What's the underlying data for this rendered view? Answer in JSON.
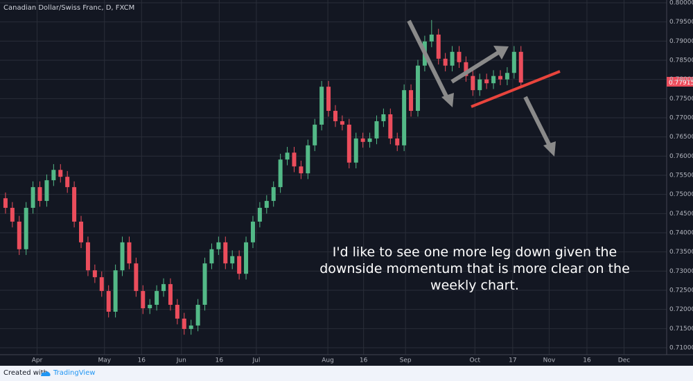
{
  "chart_data": {
    "type": "candlestick",
    "title": "Canadian Dollar/Swiss Franc, D, FXCM",
    "annotation": "I'd like to see one more leg down given the downside momentum that is more clear on the weekly chart.",
    "footer": {
      "created_with": "Created with",
      "brand": "TradingView"
    },
    "up_color": "#53b987",
    "down_color": "#eb4d5c",
    "last_price": {
      "value": 0.77915,
      "label": "0.77915"
    },
    "xlim": [
      -0.8,
      96.2
    ],
    "xticks": [
      {
        "value": 4.6,
        "label": "Apr"
      },
      {
        "value": 14.4,
        "label": "May"
      },
      {
        "value": 19.8,
        "label": "16"
      },
      {
        "value": 25.6,
        "label": "Jun"
      },
      {
        "value": 31.1,
        "label": "16"
      },
      {
        "value": 36.5,
        "label": "Jul"
      },
      {
        "value": 46.9,
        "label": "Aug"
      },
      {
        "value": 52.1,
        "label": "16"
      },
      {
        "value": 58.2,
        "label": "Sep"
      },
      {
        "value": 68.3,
        "label": "Oct"
      },
      {
        "value": 73.8,
        "label": "17"
      },
      {
        "value": 79.1,
        "label": "Nov"
      },
      {
        "value": 84.6,
        "label": "16"
      },
      {
        "value": 90.0,
        "label": "Dec"
      }
    ],
    "ylim": [
      0.70584,
      0.80072
    ],
    "yticks": [
      {
        "value": 0.71,
        "label": "0.71000"
      },
      {
        "value": 0.715,
        "label": "0.71500"
      },
      {
        "value": 0.72,
        "label": "0.72000"
      },
      {
        "value": 0.725,
        "label": "0.72500"
      },
      {
        "value": 0.73,
        "label": "0.73000"
      },
      {
        "value": 0.735,
        "label": "0.73500"
      },
      {
        "value": 0.74,
        "label": "0.74000"
      },
      {
        "value": 0.745,
        "label": "0.74500"
      },
      {
        "value": 0.75,
        "label": "0.75000"
      },
      {
        "value": 0.755,
        "label": "0.75500"
      },
      {
        "value": 0.76,
        "label": "0.76000"
      },
      {
        "value": 0.765,
        "label": "0.76500"
      },
      {
        "value": 0.77,
        "label": "0.77000"
      },
      {
        "value": 0.775,
        "label": "0.77500"
      },
      {
        "value": 0.78,
        "label": "0.78000"
      },
      {
        "value": 0.785,
        "label": "0.78500"
      },
      {
        "value": 0.79,
        "label": "0.79000"
      },
      {
        "value": 0.795,
        "label": "0.79500"
      },
      {
        "value": 0.8,
        "label": "0.80000"
      }
    ],
    "grid": true,
    "candles": [
      [
        0.749,
        0.7505,
        0.745,
        0.7465
      ],
      [
        0.7465,
        0.748,
        0.7414,
        0.7429
      ],
      [
        0.7429,
        0.7444,
        0.7342,
        0.7357
      ],
      [
        0.7357,
        0.748,
        0.7342,
        0.7465
      ],
      [
        0.7465,
        0.7534,
        0.745,
        0.7519
      ],
      [
        0.7519,
        0.7534,
        0.7468,
        0.7483
      ],
      [
        0.7483,
        0.7552,
        0.7468,
        0.7537
      ],
      [
        0.7537,
        0.7579,
        0.7522,
        0.7564
      ],
      [
        0.7564,
        0.7579,
        0.7531,
        0.7546
      ],
      [
        0.7546,
        0.7561,
        0.7504,
        0.7519
      ],
      [
        0.7519,
        0.7534,
        0.7414,
        0.7429
      ],
      [
        0.7429,
        0.7444,
        0.736,
        0.7375
      ],
      [
        0.7375,
        0.739,
        0.7287,
        0.7302
      ],
      [
        0.7302,
        0.7317,
        0.7269,
        0.7284
      ],
      [
        0.7284,
        0.7299,
        0.7233,
        0.7248
      ],
      [
        0.7248,
        0.7263,
        0.7179,
        0.7194
      ],
      [
        0.7194,
        0.7317,
        0.7179,
        0.7302
      ],
      [
        0.7302,
        0.739,
        0.7287,
        0.7375
      ],
      [
        0.7375,
        0.739,
        0.7305,
        0.732
      ],
      [
        0.732,
        0.7335,
        0.7233,
        0.7248
      ],
      [
        0.7248,
        0.7263,
        0.7188,
        0.7203
      ],
      [
        0.7203,
        0.7227,
        0.7188,
        0.7212
      ],
      [
        0.7212,
        0.7263,
        0.7197,
        0.7248
      ],
      [
        0.7248,
        0.7281,
        0.7233,
        0.7266
      ],
      [
        0.7266,
        0.7281,
        0.7197,
        0.7212
      ],
      [
        0.7212,
        0.7227,
        0.7161,
        0.7176
      ],
      [
        0.7176,
        0.7191,
        0.7134,
        0.7149
      ],
      [
        0.7149,
        0.7173,
        0.7134,
        0.7158
      ],
      [
        0.7158,
        0.7227,
        0.7143,
        0.7212
      ],
      [
        0.7212,
        0.7335,
        0.7197,
        0.732
      ],
      [
        0.732,
        0.7372,
        0.7305,
        0.7357
      ],
      [
        0.7357,
        0.739,
        0.7342,
        0.7375
      ],
      [
        0.7375,
        0.739,
        0.7305,
        0.732
      ],
      [
        0.732,
        0.7354,
        0.7305,
        0.7339
      ],
      [
        0.7339,
        0.7354,
        0.7278,
        0.7293
      ],
      [
        0.7293,
        0.739,
        0.7278,
        0.7375
      ],
      [
        0.7375,
        0.7444,
        0.736,
        0.7429
      ],
      [
        0.7429,
        0.748,
        0.7414,
        0.7465
      ],
      [
        0.7465,
        0.7498,
        0.745,
        0.7483
      ],
      [
        0.7483,
        0.7534,
        0.7468,
        0.7519
      ],
      [
        0.7519,
        0.7606,
        0.7504,
        0.7591
      ],
      [
        0.7591,
        0.7624,
        0.7576,
        0.7609
      ],
      [
        0.7609,
        0.7624,
        0.7558,
        0.7573
      ],
      [
        0.7573,
        0.7588,
        0.754,
        0.7555
      ],
      [
        0.7555,
        0.7643,
        0.754,
        0.7628
      ],
      [
        0.7628,
        0.7697,
        0.7613,
        0.7682
      ],
      [
        0.7682,
        0.7796,
        0.7667,
        0.7781
      ],
      [
        0.7781,
        0.7796,
        0.7703,
        0.7718
      ],
      [
        0.7718,
        0.7733,
        0.7676,
        0.7691
      ],
      [
        0.7691,
        0.7706,
        0.7667,
        0.7682
      ],
      [
        0.7682,
        0.7697,
        0.7568,
        0.7583
      ],
      [
        0.7583,
        0.7661,
        0.7568,
        0.7646
      ],
      [
        0.7646,
        0.7661,
        0.7622,
        0.7637
      ],
      [
        0.7637,
        0.7661,
        0.7622,
        0.7646
      ],
      [
        0.7646,
        0.7706,
        0.7631,
        0.7691
      ],
      [
        0.7691,
        0.7724,
        0.7676,
        0.7709
      ],
      [
        0.7709,
        0.7724,
        0.7631,
        0.7646
      ],
      [
        0.7646,
        0.7661,
        0.7613,
        0.7628
      ],
      [
        0.7628,
        0.7787,
        0.7613,
        0.7772
      ],
      [
        0.7772,
        0.7787,
        0.7703,
        0.7718
      ],
      [
        0.7718,
        0.7851,
        0.7703,
        0.7836
      ],
      [
        0.7836,
        0.7914,
        0.7821,
        0.7899
      ],
      [
        0.7899,
        0.7955,
        0.7884,
        0.7917
      ],
      [
        0.7917,
        0.7932,
        0.7839,
        0.7854
      ],
      [
        0.7854,
        0.7869,
        0.7821,
        0.7836
      ],
      [
        0.7836,
        0.7887,
        0.7821,
        0.7872
      ],
      [
        0.7872,
        0.7887,
        0.783,
        0.7845
      ],
      [
        0.7845,
        0.786,
        0.7794,
        0.7809
      ],
      [
        0.7809,
        0.7824,
        0.7757,
        0.7772
      ],
      [
        0.7772,
        0.7815,
        0.7757,
        0.78
      ],
      [
        0.78,
        0.7815,
        0.7775,
        0.779
      ],
      [
        0.779,
        0.7824,
        0.7775,
        0.7809
      ],
      [
        0.7809,
        0.7824,
        0.7785,
        0.78
      ],
      [
        0.78,
        0.7832,
        0.7785,
        0.7817
      ],
      [
        0.7817,
        0.7887,
        0.7802,
        0.7872
      ],
      [
        0.7872,
        0.7887,
        0.7777,
        0.7792
      ]
    ]
  }
}
